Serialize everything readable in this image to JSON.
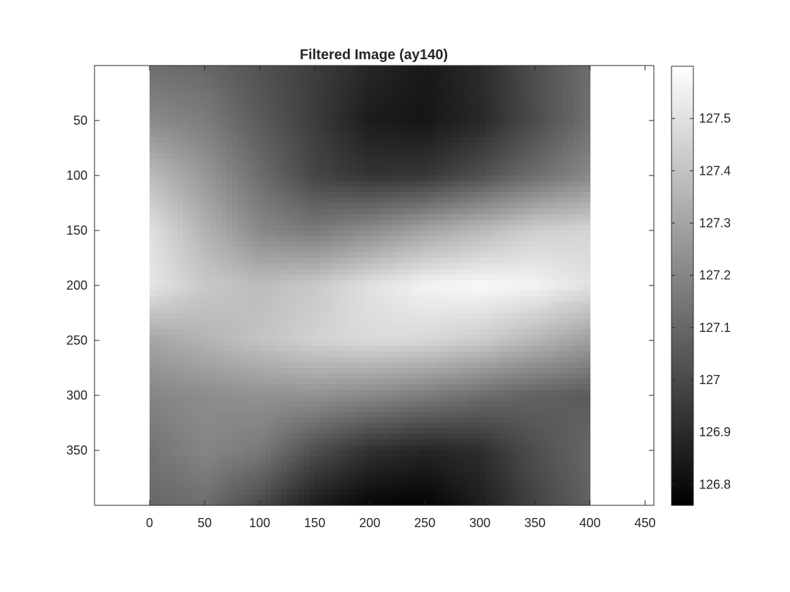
{
  "chart_data": {
    "type": "heatmap",
    "title": "Filtered Image (ay140)",
    "xlabel": "",
    "ylabel": "",
    "colormap": "gray",
    "grid": false,
    "image_extent": {
      "x": [
        0,
        400
      ],
      "y": [
        0,
        400
      ]
    },
    "xlim": [
      -50,
      458
    ],
    "ylim": [
      0,
      400
    ],
    "y_reversed": true,
    "x_ticks": [
      0,
      50,
      100,
      150,
      200,
      250,
      300,
      350,
      400,
      450
    ],
    "y_ticks": [
      50,
      100,
      150,
      200,
      250,
      300,
      350
    ],
    "colorbar": {
      "position": "right",
      "range": [
        126.76,
        127.6
      ],
      "ticks": [
        126.8,
        126.9,
        127,
        127.1,
        127.2,
        127.3,
        127.4,
        127.5
      ],
      "tick_labels": [
        "126.8",
        "126.9",
        "127",
        "127.1",
        "127.2",
        "127.3",
        "127.4",
        "127.5"
      ]
    },
    "grid_x": [
      0,
      50,
      100,
      150,
      200,
      250,
      300,
      350,
      400
    ],
    "grid_y": [
      0,
      50,
      100,
      150,
      200,
      250,
      300,
      350,
      400
    ],
    "values": [
      [
        127.12,
        127.1,
        127.03,
        126.96,
        126.89,
        126.84,
        126.9,
        127.02,
        127.12
      ],
      [
        127.22,
        127.17,
        127.06,
        126.96,
        126.85,
        126.83,
        126.89,
        127.01,
        127.13
      ],
      [
        127.38,
        127.26,
        127.12,
        126.99,
        126.93,
        126.94,
        127.02,
        127.12,
        127.21
      ],
      [
        127.5,
        127.35,
        127.21,
        127.16,
        127.22,
        127.3,
        127.37,
        127.44,
        127.46
      ],
      [
        127.52,
        127.42,
        127.38,
        127.42,
        127.5,
        127.56,
        127.58,
        127.56,
        127.5
      ],
      [
        127.3,
        127.35,
        127.4,
        127.45,
        127.48,
        127.47,
        127.43,
        127.36,
        127.28
      ],
      [
        127.2,
        127.22,
        127.24,
        127.24,
        127.21,
        127.17,
        127.12,
        127.08,
        127.06
      ],
      [
        127.14,
        127.2,
        127.16,
        127.02,
        126.92,
        126.88,
        126.91,
        127.02,
        127.1
      ],
      [
        127.1,
        127.12,
        127.0,
        126.85,
        126.78,
        126.77,
        126.85,
        126.98,
        127.08
      ]
    ]
  }
}
